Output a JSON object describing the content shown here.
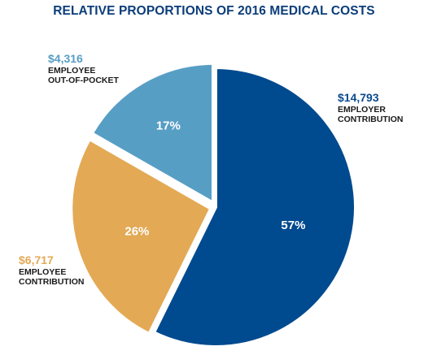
{
  "chart_data": {
    "type": "pie",
    "title": "RELATIVE PROPORTIONS OF 2016 MEDICAL COSTS",
    "slices": [
      {
        "amount": "$14,793",
        "line1": "EMPLOYER",
        "line2": "CONTRIBUTION",
        "percent_label": "57%",
        "value": 14793,
        "color": "#004a8f"
      },
      {
        "amount": "$6,717",
        "line1": "EMPLOYEE",
        "line2": "CONTRIBUTION",
        "percent_label": "26%",
        "value": 6717,
        "color": "#e3a955"
      },
      {
        "amount": "$4,316",
        "line1": "EMPLOYEE",
        "line2": "OUT-OF-POCKET",
        "percent_label": "17%",
        "value": 4316,
        "color": "#579ec4"
      }
    ]
  }
}
